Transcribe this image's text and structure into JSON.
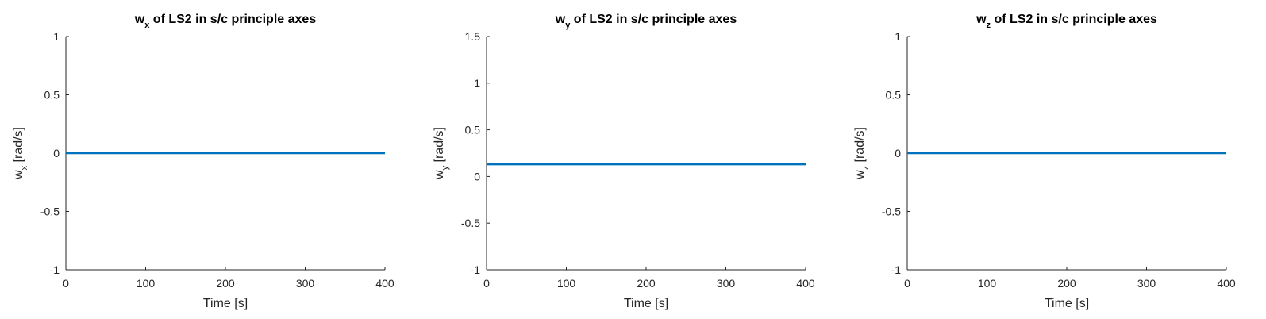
{
  "chart_data": [
    {
      "type": "line",
      "title": {
        "base": "w",
        "sub": "x",
        "rest": " of LS2 in s/c principle axes"
      },
      "xlabel": "Time [s]",
      "ylabel": {
        "base": "w",
        "sub": "x",
        "rest": "  [rad/s]"
      },
      "xlim": [
        0,
        400
      ],
      "ylim": [
        -1,
        1
      ],
      "xticks": [
        0,
        100,
        200,
        300,
        400
      ],
      "xtick_labels": [
        "0",
        "100",
        "200",
        "300",
        "400"
      ],
      "yticks": [
        -1,
        -0.5,
        0,
        0.5,
        1
      ],
      "ytick_labels": [
        "-1",
        "-0.5",
        "0",
        "0.5",
        "1"
      ],
      "grid": false,
      "series": [
        {
          "x": [
            0,
            400
          ],
          "y": [
            0,
            0
          ],
          "color": "#0072BD"
        }
      ]
    },
    {
      "type": "line",
      "title": {
        "base": "w",
        "sub": "y",
        "rest": " of LS2 in s/c principle axes"
      },
      "xlabel": "Time [s]",
      "ylabel": {
        "base": "w",
        "sub": "y",
        "rest": "  [rad/s]"
      },
      "xlim": [
        0,
        400
      ],
      "ylim": [
        -1,
        1.5
      ],
      "xticks": [
        0,
        100,
        200,
        300,
        400
      ],
      "xtick_labels": [
        "0",
        "100",
        "200",
        "300",
        "400"
      ],
      "yticks": [
        -1,
        -0.5,
        0,
        0.5,
        1,
        1.5
      ],
      "ytick_labels": [
        "-1",
        "-0.5",
        "0",
        "0.5",
        "1",
        "1.5"
      ],
      "grid": false,
      "series": [
        {
          "x": [
            0,
            400
          ],
          "y": [
            0.13,
            0.13
          ],
          "color": "#0072BD"
        }
      ]
    },
    {
      "type": "line",
      "title": {
        "base": "w",
        "sub": "z",
        "rest": " of LS2 in s/c principle axes"
      },
      "xlabel": "Time [s]",
      "ylabel": {
        "base": "w",
        "sub": "z",
        "rest": "  [rad/s]"
      },
      "xlim": [
        0,
        400
      ],
      "ylim": [
        -1,
        1
      ],
      "xticks": [
        0,
        100,
        200,
        300,
        400
      ],
      "xtick_labels": [
        "0",
        "100",
        "200",
        "300",
        "400"
      ],
      "yticks": [
        -1,
        -0.5,
        0,
        0.5,
        1
      ],
      "ytick_labels": [
        "-1",
        "-0.5",
        "0",
        "0.5",
        "1"
      ],
      "grid": false,
      "series": [
        {
          "x": [
            0,
            400
          ],
          "y": [
            0,
            0
          ],
          "color": "#0072BD"
        }
      ]
    }
  ]
}
